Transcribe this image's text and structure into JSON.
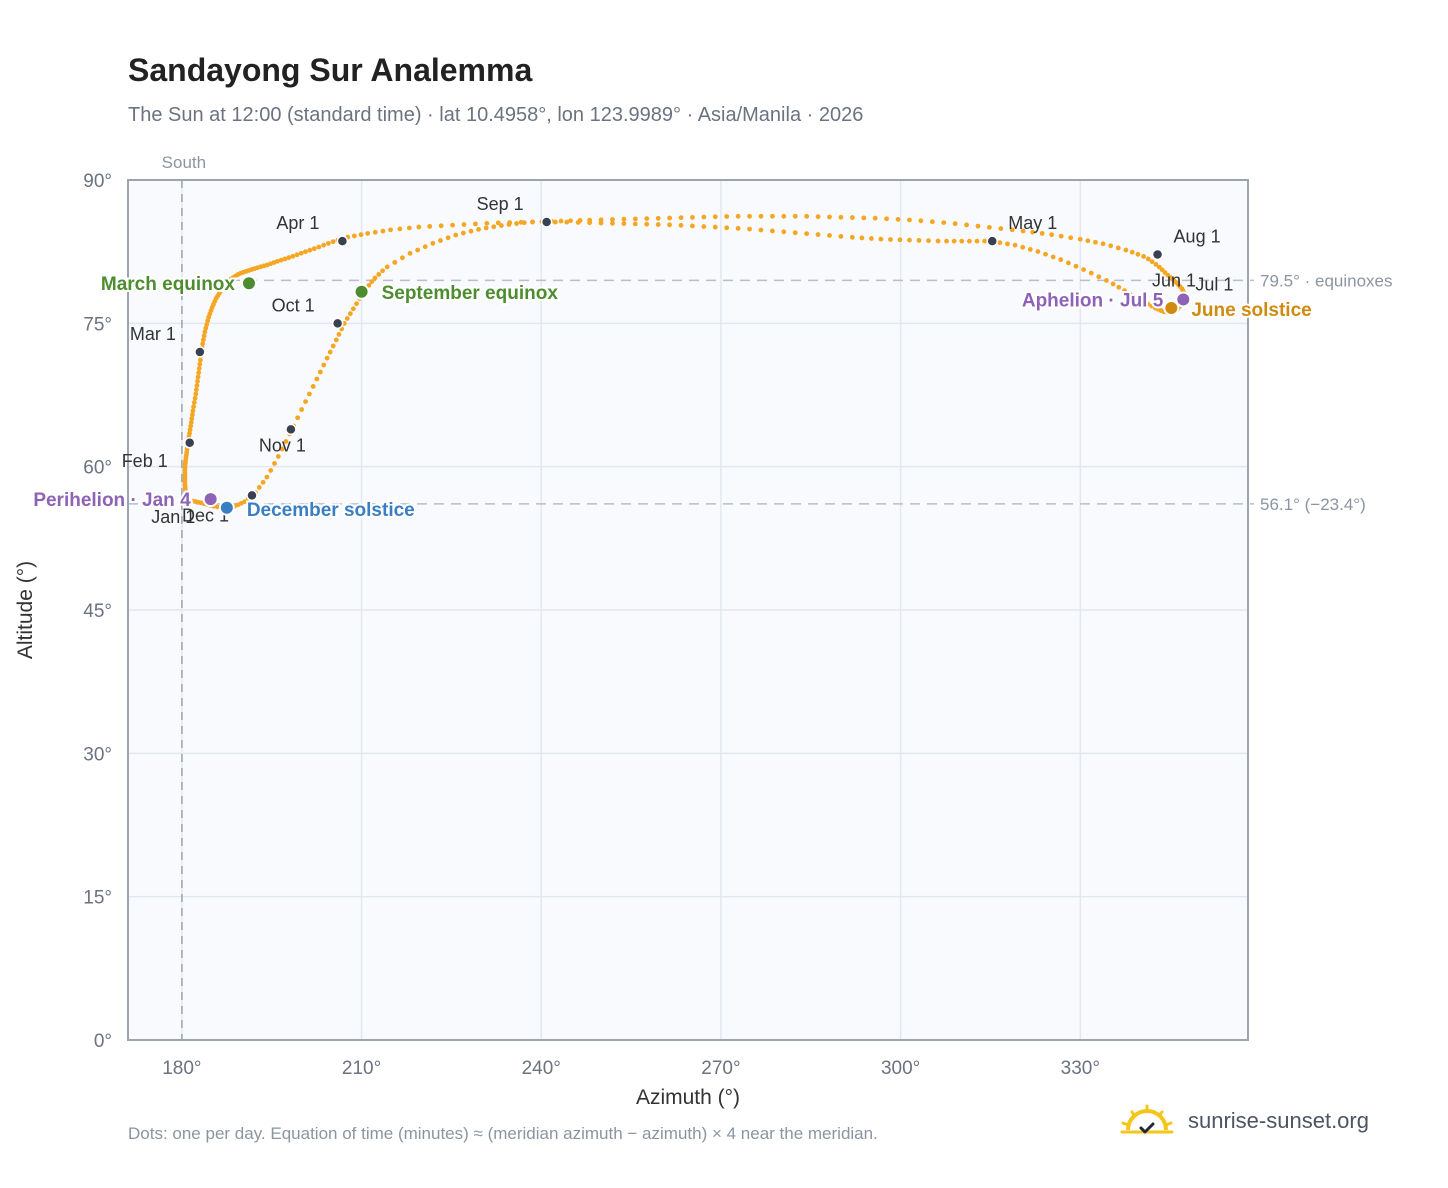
{
  "title": "Sandayong Sur Analemma",
  "subtitle": "The Sun at 12:00 (standard time) · lat 10.4958°, lon 123.9989° · Asia/Manila · 2026",
  "footnote": "Dots: one per day. Equation of time (minutes) ≈ (meridian azimuth − azimuth) × 4 near the meridian.",
  "brand": {
    "name": "sunrise-sunset.org",
    "icon": "sun-logo-icon"
  },
  "colors": {
    "curve": "#f5a623",
    "month_dot": "#374151",
    "equinox": "#4d8c2f",
    "december_solstice": "#3a7fc1",
    "june_solstice": "#d08a10",
    "apsis": "#8e63b5",
    "plot_bg": "#f8fafd",
    "grid": "#e3e8ef",
    "frame": "#9aa5b1"
  },
  "chart_data": {
    "type": "scatter",
    "xlabel": "Azimuth (°)",
    "ylabel": "Altitude (°)",
    "xlim": [
      171,
      358
    ],
    "ylim": [
      0,
      90
    ],
    "xticks": [
      {
        "value": 180,
        "label": "180°"
      },
      {
        "value": 210,
        "label": "210°"
      },
      {
        "value": 240,
        "label": "240°"
      },
      {
        "value": 270,
        "label": "270°"
      },
      {
        "value": 300,
        "label": "300°"
      },
      {
        "value": 330,
        "label": "330°"
      }
    ],
    "yticks": [
      {
        "value": 0,
        "label": "0°"
      },
      {
        "value": 15,
        "label": "15°"
      },
      {
        "value": 30,
        "label": "30°"
      },
      {
        "value": 45,
        "label": "45°"
      },
      {
        "value": 60,
        "label": "60°"
      },
      {
        "value": 75,
        "label": "75°"
      },
      {
        "value": 90,
        "label": "90°"
      }
    ],
    "grid": true,
    "south_line": {
      "azimuth": 180,
      "label": "South"
    },
    "reference_lines": [
      {
        "altitude": 79.5,
        "label": "79.5° · equinoxes"
      },
      {
        "altitude": 56.1,
        "label": "56.1° (−23.4°)"
      }
    ],
    "series": [
      {
        "points": [
          [
            180.9,
            56.2
          ],
          [
            180.7,
            56.7
          ],
          [
            180.6,
            57.4
          ],
          [
            180.5,
            58.2
          ],
          [
            180.5,
            59.0
          ],
          [
            180.5,
            59.8
          ],
          [
            180.6,
            60.6
          ],
          [
            180.8,
            61.5
          ],
          [
            181.0,
            62.5
          ],
          [
            181.3,
            63.6
          ],
          [
            181.6,
            64.8
          ],
          [
            181.9,
            66.1
          ],
          [
            182.3,
            67.5
          ],
          [
            182.6,
            68.9
          ],
          [
            182.9,
            70.3
          ],
          [
            183.2,
            71.7
          ],
          [
            183.5,
            73.0
          ],
          [
            183.9,
            74.3
          ],
          [
            184.4,
            75.5
          ],
          [
            185.0,
            76.6
          ],
          [
            185.7,
            77.6
          ],
          [
            186.5,
            78.4
          ],
          [
            187.3,
            79.1
          ],
          [
            188.3,
            79.7
          ],
          [
            189.6,
            80.2
          ],
          [
            191.0,
            80.5
          ],
          [
            192.5,
            80.8
          ],
          [
            194.2,
            81.1
          ],
          [
            196.0,
            81.5
          ],
          [
            198.0,
            81.9
          ],
          [
            200.2,
            82.4
          ],
          [
            202.5,
            82.9
          ],
          [
            205.0,
            83.5
          ],
          [
            207.5,
            84.0
          ],
          [
            211.0,
            84.4
          ],
          [
            215.0,
            84.8
          ],
          [
            220.0,
            85.1
          ],
          [
            226.0,
            85.3
          ],
          [
            232.0,
            85.5
          ],
          [
            238.0,
            85.6
          ],
          [
            244.0,
            85.6
          ],
          [
            250.0,
            85.5
          ],
          [
            256.0,
            85.4
          ],
          [
            262.0,
            85.3
          ],
          [
            268.0,
            85.1
          ],
          [
            274.0,
            84.9
          ],
          [
            280.0,
            84.6
          ],
          [
            286.0,
            84.3
          ],
          [
            292.0,
            84.0
          ],
          [
            297.0,
            83.8
          ],
          [
            302.0,
            83.7
          ],
          [
            307.0,
            83.6
          ],
          [
            311.0,
            83.6
          ],
          [
            315.0,
            83.6
          ],
          [
            319.0,
            83.2
          ],
          [
            323.0,
            82.5
          ],
          [
            327.0,
            81.6
          ],
          [
            331.0,
            80.5
          ],
          [
            335.0,
            79.3
          ],
          [
            338.0,
            78.2
          ],
          [
            340.5,
            77.3
          ],
          [
            342.5,
            76.6
          ],
          [
            344.0,
            76.2
          ],
          [
            345.2,
            76.1
          ],
          [
            346.0,
            76.3
          ],
          [
            346.6,
            76.8
          ],
          [
            347.2,
            77.4
          ],
          [
            347.4,
            78.0
          ],
          [
            347.0,
            78.6
          ],
          [
            346.0,
            79.3
          ],
          [
            344.5,
            80.1
          ],
          [
            343.0,
            81.0
          ],
          [
            341.0,
            81.9
          ],
          [
            338.0,
            82.6
          ],
          [
            334.0,
            83.3
          ],
          [
            330.0,
            83.8
          ],
          [
            325.0,
            84.3
          ],
          [
            320.0,
            84.7
          ],
          [
            314.0,
            85.1
          ],
          [
            308.0,
            85.5
          ],
          [
            302.0,
            85.8
          ],
          [
            296.0,
            86.0
          ],
          [
            290.0,
            86.1
          ],
          [
            284.0,
            86.2
          ],
          [
            278.0,
            86.2
          ],
          [
            272.0,
            86.2
          ],
          [
            266.0,
            86.1
          ],
          [
            260.0,
            86.0
          ],
          [
            254.0,
            85.9
          ],
          [
            248.0,
            85.8
          ],
          [
            243.0,
            85.7
          ],
          [
            238.0,
            85.6
          ],
          [
            234.0,
            85.3
          ],
          [
            230.0,
            84.9
          ],
          [
            226.0,
            84.3
          ],
          [
            222.0,
            83.4
          ],
          [
            218.0,
            82.3
          ],
          [
            214.0,
            80.8
          ],
          [
            212.0,
            79.6
          ],
          [
            210.5,
            78.4
          ],
          [
            208.8,
            76.7
          ],
          [
            207.2,
            75.1
          ],
          [
            205.8,
            73.3
          ],
          [
            204.2,
            71.3
          ],
          [
            202.4,
            69.0
          ],
          [
            200.4,
            66.5
          ],
          [
            198.3,
            63.8
          ],
          [
            196.3,
            61.3
          ],
          [
            194.3,
            59.0
          ],
          [
            192.3,
            57.3
          ],
          [
            190.4,
            56.3
          ],
          [
            188.6,
            55.8
          ],
          [
            186.8,
            55.7
          ],
          [
            185.0,
            55.9
          ],
          [
            183.3,
            56.2
          ],
          [
            181.9,
            56.4
          ],
          [
            180.9,
            56.2
          ]
        ]
      }
    ],
    "month_markers": [
      {
        "label": "Jan 1",
        "azimuth": 180.9,
        "altitude": 56.2
      },
      {
        "label": "Feb 1",
        "azimuth": 181.3,
        "altitude": 62.5
      },
      {
        "label": "Mar 1",
        "azimuth": 183.0,
        "altitude": 72.0
      },
      {
        "label": "Apr 1",
        "azimuth": 206.8,
        "altitude": 83.6
      },
      {
        "label": "May 1",
        "azimuth": 315.3,
        "altitude": 83.6
      },
      {
        "label": "Jun 1",
        "azimuth": 339.3,
        "altitude": 77.6
      },
      {
        "label": "Jul 1",
        "azimuth": 347.2,
        "altitude": 77.4
      },
      {
        "label": "Aug 1",
        "azimuth": 342.9,
        "altitude": 82.2
      },
      {
        "label": "Sep 1",
        "azimuth": 240.9,
        "altitude": 85.6
      },
      {
        "label": "Oct 1",
        "azimuth": 206.0,
        "altitude": 75.0
      },
      {
        "label": "Nov 1",
        "azimuth": 198.2,
        "altitude": 63.9
      },
      {
        "label": "Dec 1",
        "azimuth": 191.7,
        "altitude": 57.0
      }
    ],
    "events": [
      {
        "label": "March equinox",
        "azimuth": 191.2,
        "altitude": 79.2,
        "kind": "equinox"
      },
      {
        "label": "September equinox",
        "azimuth": 210.0,
        "altitude": 78.3,
        "kind": "equinox"
      },
      {
        "label": "December solstice",
        "azimuth": 187.5,
        "altitude": 55.7,
        "kind": "december_solstice"
      },
      {
        "label": "June solstice",
        "azimuth": 345.2,
        "altitude": 76.6,
        "kind": "june_solstice"
      },
      {
        "label": "Perihelion · Jan 4",
        "azimuth": 184.8,
        "altitude": 56.6,
        "kind": "apsis"
      },
      {
        "label": "Aphelion · Jul 5",
        "azimuth": 347.2,
        "altitude": 77.5,
        "kind": "apsis"
      }
    ]
  }
}
